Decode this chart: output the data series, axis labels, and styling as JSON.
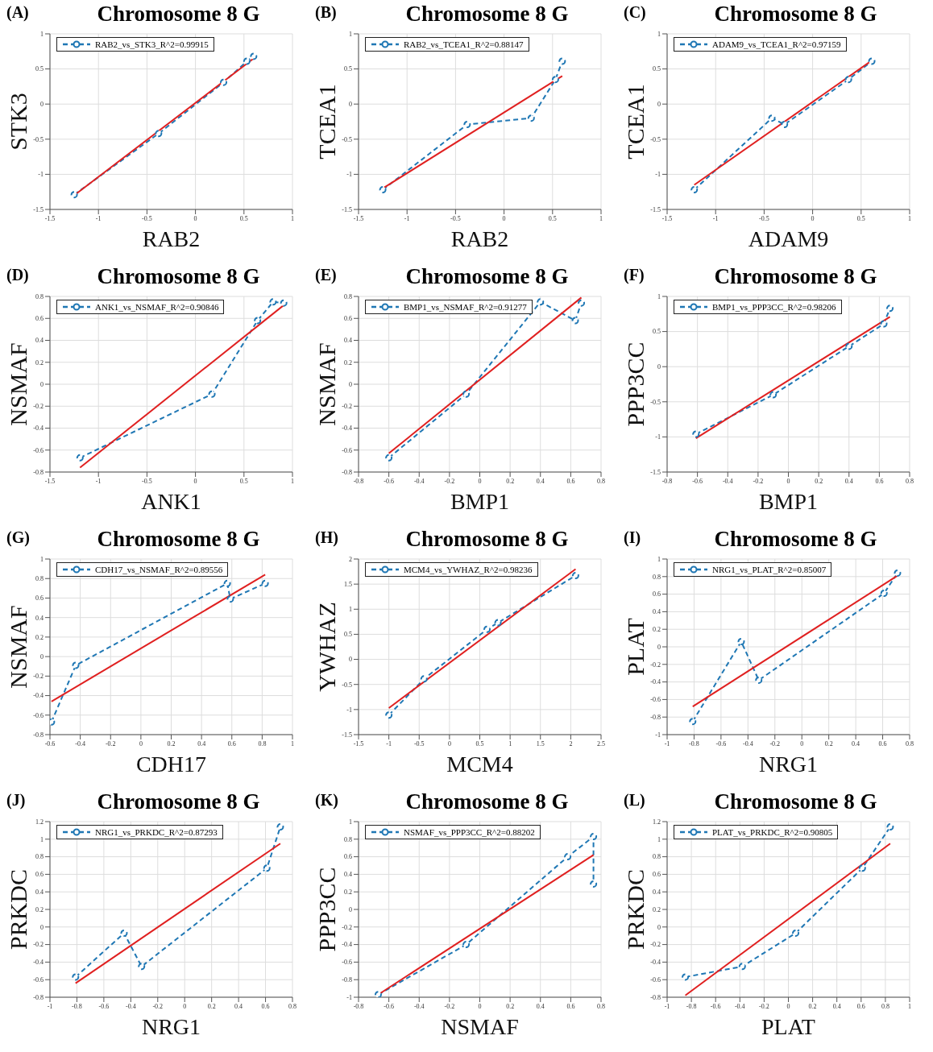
{
  "chart_data": [
    {
      "type": "line",
      "title": "Chromosome 8 G",
      "annotations": [
        "(A)"
      ],
      "xlabel": "RAB2",
      "ylabel": "STK3",
      "xlim": [
        -1.5,
        1
      ],
      "xticks": [
        -1.5,
        -1,
        -0.5,
        0,
        0.5,
        1
      ],
      "ylim": [
        -1.5,
        1
      ],
      "yticks": [
        -1.5,
        -1,
        -0.5,
        0,
        0.5,
        1
      ],
      "grid": true,
      "legend": "top left",
      "series": [
        {
          "name": "RAB2_vs_STK3_R^2=0.99915",
          "color": "#1f77b4",
          "marker": "circle",
          "line_style": "dashed",
          "x": [
            -1.25,
            -0.38,
            0.29,
            0.53,
            0.6
          ],
          "values": [
            -1.29,
            -0.42,
            0.31,
            0.61,
            0.68
          ]
        },
        {
          "color": "#e02020",
          "line_style": "solid",
          "x": [
            -1.25,
            0.6
          ],
          "values": [
            -1.3,
            0.65
          ]
        }
      ]
    },
    {
      "type": "line",
      "title": "Chromosome 8 G",
      "annotations": [
        "(B)"
      ],
      "xlabel": "RAB2",
      "ylabel": "TCEA1",
      "xlim": [
        -1.5,
        1
      ],
      "xticks": [
        -1.5,
        -1,
        -0.5,
        0,
        0.5,
        1
      ],
      "ylim": [
        -1.5,
        1
      ],
      "yticks": [
        -1.5,
        -1,
        -0.5,
        0,
        0.5,
        1
      ],
      "grid": true,
      "legend": "top left",
      "series": [
        {
          "name": "RAB2_vs_TCEA1_R^2=0.88147",
          "color": "#1f77b4",
          "marker": "circle",
          "line_style": "dashed",
          "x": [
            -1.25,
            -0.38,
            0.28,
            0.53,
            0.6
          ],
          "values": [
            -1.22,
            -0.29,
            -0.2,
            0.35,
            0.61
          ]
        },
        {
          "color": "#e02020",
          "line_style": "solid",
          "x": [
            -1.25,
            0.6
          ],
          "values": [
            -1.2,
            0.4
          ]
        }
      ]
    },
    {
      "type": "line",
      "title": "Chromosome 8 G",
      "annotations": [
        "(C)"
      ],
      "xlabel": "ADAM9",
      "ylabel": "TCEA1",
      "xlim": [
        -1.5,
        1
      ],
      "xticks": [
        -1.5,
        -1,
        -0.5,
        0,
        0.5,
        1
      ],
      "ylim": [
        -1.5,
        1
      ],
      "yticks": [
        -1.5,
        -1,
        -0.5,
        0,
        0.5,
        1
      ],
      "grid": true,
      "legend": "top left",
      "series": [
        {
          "name": "ADAM9_vs_TCEA1_R^2=0.97159",
          "color": "#1f77b4",
          "marker": "circle",
          "line_style": "dashed",
          "x": [
            -1.22,
            -0.42,
            -0.29,
            0.37,
            0.61
          ],
          "values": [
            -1.22,
            -0.2,
            -0.29,
            0.35,
            0.61
          ]
        },
        {
          "color": "#e02020",
          "line_style": "solid",
          "x": [
            -1.22,
            0.61
          ],
          "values": [
            -1.15,
            0.62
          ]
        }
      ]
    },
    {
      "type": "line",
      "title": "Chromosome 8 G",
      "annotations": [
        "(D)"
      ],
      "xlabel": "ANK1",
      "ylabel": "NSMAF",
      "xlim": [
        -1.5,
        1
      ],
      "xticks": [
        -1.5,
        -1,
        -0.5,
        0,
        0.5,
        1
      ],
      "ylim": [
        -0.8,
        0.8
      ],
      "yticks": [
        -0.8,
        -0.6,
        -0.4,
        -0.2,
        0,
        0.2,
        0.4,
        0.6,
        0.8
      ],
      "grid": true,
      "legend": "top left",
      "series": [
        {
          "name": "ANK1_vs_NSMAF_R^2=0.90846",
          "color": "#1f77b4",
          "marker": "circle",
          "line_style": "dashed",
          "x": [
            -1.19,
            0.17,
            0.64,
            0.8,
            0.91
          ],
          "values": [
            -0.67,
            -0.09,
            0.58,
            0.75,
            0.74
          ]
        },
        {
          "color": "#e02020",
          "line_style": "solid",
          "x": [
            -1.19,
            0.91
          ],
          "values": [
            -0.76,
            0.72
          ]
        }
      ]
    },
    {
      "type": "line",
      "title": "Chromosome 8 G",
      "annotations": [
        "(E)"
      ],
      "xlabel": "BMP1",
      "ylabel": "NSMAF",
      "xlim": [
        -0.8,
        0.8
      ],
      "xticks": [
        -0.8,
        -0.6,
        -0.4,
        -0.2,
        0,
        0.2,
        0.4,
        0.6,
        0.8
      ],
      "ylim": [
        -0.8,
        0.8
      ],
      "yticks": [
        -0.8,
        -0.6,
        -0.4,
        -0.2,
        0,
        0.2,
        0.4,
        0.6,
        0.8
      ],
      "grid": true,
      "legend": "top left",
      "series": [
        {
          "name": "BMP1_vs_NSMAF_R^2=0.91277",
          "color": "#1f77b4",
          "marker": "circle",
          "line_style": "dashed",
          "x": [
            -0.6,
            -0.09,
            0.4,
            0.63,
            0.67
          ],
          "values": [
            -0.67,
            -0.09,
            0.75,
            0.58,
            0.74
          ]
        },
        {
          "color": "#e02020",
          "line_style": "solid",
          "x": [
            -0.6,
            0.67
          ],
          "values": [
            -0.63,
            0.79
          ]
        }
      ]
    },
    {
      "type": "line",
      "title": "Chromosome 8 G",
      "annotations": [
        "(F)"
      ],
      "xlabel": "BMP1",
      "ylabel": "PPP3CC",
      "xlim": [
        -0.8,
        0.8
      ],
      "xticks": [
        -0.8,
        -0.6,
        -0.4,
        -0.2,
        0,
        0.2,
        0.4,
        0.6,
        0.8
      ],
      "ylim": [
        -1.5,
        1
      ],
      "yticks": [
        -1.5,
        -1,
        -0.5,
        0,
        0.5,
        1
      ],
      "grid": true,
      "legend": "top left",
      "series": [
        {
          "name": "BMP1_vs_PPP3CC_R^2=0.98206",
          "color": "#1f77b4",
          "marker": "circle",
          "line_style": "dashed",
          "x": [
            -0.61,
            -0.1,
            0.4,
            0.63,
            0.67
          ],
          "values": [
            -0.96,
            -0.4,
            0.29,
            0.61,
            0.83
          ]
        },
        {
          "color": "#e02020",
          "line_style": "solid",
          "x": [
            -0.61,
            0.67
          ],
          "values": [
            -1.02,
            0.71
          ]
        }
      ]
    },
    {
      "type": "line",
      "title": "Chromosome 8 G",
      "annotations": [
        "(G)"
      ],
      "xlabel": "CDH17",
      "ylabel": "NSMAF",
      "xlim": [
        -0.6,
        1
      ],
      "xticks": [
        -0.6,
        -0.4,
        -0.2,
        0,
        0.2,
        0.4,
        0.6,
        0.8,
        1
      ],
      "ylim": [
        -0.8,
        1
      ],
      "yticks": [
        -0.8,
        -0.6,
        -0.4,
        -0.2,
        0,
        0.2,
        0.4,
        0.6,
        0.8,
        1
      ],
      "grid": true,
      "legend": "top left",
      "series": [
        {
          "name": "CDH17_vs_NSMAF_R^2=0.89556",
          "color": "#1f77b4",
          "marker": "circle",
          "line_style": "dashed",
          "x": [
            -0.59,
            -0.43,
            0.57,
            0.59,
            0.82
          ],
          "values": [
            -0.67,
            -0.09,
            0.75,
            0.59,
            0.75
          ]
        },
        {
          "color": "#e02020",
          "line_style": "solid",
          "x": [
            -0.59,
            0.82
          ],
          "values": [
            -0.46,
            0.84
          ]
        }
      ]
    },
    {
      "type": "line",
      "title": "Chromosome 8 G",
      "annotations": [
        "(H)"
      ],
      "xlabel": "MCM4",
      "ylabel": "YWHAZ",
      "xlim": [
        -1.5,
        2.5
      ],
      "xticks": [
        -1.5,
        -1,
        -0.5,
        0,
        0.5,
        1,
        1.5,
        2,
        2.5
      ],
      "ylim": [
        -1.5,
        2
      ],
      "yticks": [
        -1.5,
        -1,
        -0.5,
        0,
        0.5,
        1,
        1.5,
        2
      ],
      "grid": true,
      "legend": "top left",
      "series": [
        {
          "name": "MCM4_vs_YWHAZ_R^2=0.98236",
          "color": "#1f77b4",
          "marker": "circle",
          "line_style": "dashed",
          "x": [
            -1,
            -0.42,
            0.62,
            0.8,
            2.08
          ],
          "values": [
            -1.11,
            -0.39,
            0.6,
            0.73,
            1.67
          ]
        },
        {
          "color": "#e02020",
          "line_style": "solid",
          "x": [
            -1,
            2.08
          ],
          "values": [
            -0.97,
            1.8
          ]
        }
      ]
    },
    {
      "type": "line",
      "title": "Chromosome 8 G",
      "annotations": [
        "(I)"
      ],
      "xlabel": "NRG1",
      "ylabel": "PLAT",
      "xlim": [
        -1,
        0.8
      ],
      "xticks": [
        -1,
        -0.8,
        -0.6,
        -0.4,
        -0.2,
        0,
        0.2,
        0.4,
        0.6,
        0.8
      ],
      "ylim": [
        -1,
        1
      ],
      "yticks": [
        -1,
        -0.8,
        -0.6,
        -0.4,
        -0.2,
        0,
        0.2,
        0.4,
        0.6,
        0.8,
        1
      ],
      "grid": true,
      "legend": "top left",
      "series": [
        {
          "name": "NRG1_vs_PLAT_R^2=0.85007",
          "color": "#1f77b4",
          "marker": "circle",
          "line_style": "dashed",
          "x": [
            -0.81,
            -0.45,
            -0.32,
            0.61,
            0.71
          ],
          "values": [
            -0.85,
            0.06,
            -0.38,
            0.61,
            0.84
          ]
        },
        {
          "color": "#e02020",
          "line_style": "solid",
          "x": [
            -0.81,
            0.71
          ],
          "values": [
            -0.68,
            0.81
          ]
        }
      ]
    },
    {
      "type": "line",
      "title": "Chromosome 8 G",
      "annotations": [
        "(J)"
      ],
      "xlabel": "NRG1",
      "ylabel": "PRKDC",
      "xlim": [
        -1,
        0.8
      ],
      "xticks": [
        -1,
        -0.8,
        -0.6,
        -0.4,
        -0.2,
        0,
        0.2,
        0.4,
        0.6,
        0.8
      ],
      "ylim": [
        -0.8,
        1.2
      ],
      "yticks": [
        -0.8,
        -0.6,
        -0.4,
        -0.2,
        0,
        0.2,
        0.4,
        0.6,
        0.8,
        1,
        1.2
      ],
      "grid": true,
      "legend": "top left",
      "series": [
        {
          "name": "NRG1_vs_PRKDC_R^2=0.87293",
          "color": "#1f77b4",
          "marker": "circle",
          "line_style": "dashed",
          "x": [
            -0.81,
            -0.45,
            -0.32,
            0.61,
            0.71
          ],
          "values": [
            -0.57,
            -0.07,
            -0.45,
            0.67,
            1.14
          ]
        },
        {
          "color": "#e02020",
          "line_style": "solid",
          "x": [
            -0.81,
            0.71
          ],
          "values": [
            -0.64,
            0.95
          ]
        }
      ]
    },
    {
      "type": "line",
      "title": "Chromosome 8 G",
      "annotations": [
        "(K)"
      ],
      "xlabel": "NSMAF",
      "ylabel": "PPP3CC",
      "xlim": [
        -0.8,
        0.8
      ],
      "xticks": [
        -0.8,
        -0.6,
        -0.4,
        -0.2,
        0,
        0.2,
        0.4,
        0.6,
        0.8
      ],
      "ylim": [
        -1,
        1
      ],
      "yticks": [
        -1,
        -0.8,
        -0.6,
        -0.4,
        -0.2,
        0,
        0.2,
        0.4,
        0.6,
        0.8,
        1
      ],
      "grid": true,
      "legend": "top left",
      "series": [
        {
          "name": "NSMAF_vs_PPP3CC_R^2=0.88202",
          "color": "#1f77b4",
          "marker": "circle",
          "line_style": "dashed",
          "x": [
            -0.67,
            -0.09,
            0.58,
            0.75,
            0.75
          ],
          "values": [
            -0.97,
            -0.4,
            0.6,
            0.83,
            0.29
          ]
        },
        {
          "color": "#e02020",
          "line_style": "solid",
          "x": [
            -0.67,
            0.75
          ],
          "values": [
            -0.97,
            0.62
          ]
        }
      ]
    },
    {
      "type": "line",
      "title": "Chromosome 8 G",
      "annotations": [
        "(L)"
      ],
      "xlabel": "PLAT",
      "ylabel": "PRKDC",
      "xlim": [
        -1,
        1
      ],
      "xticks": [
        -1,
        -0.8,
        -0.6,
        -0.4,
        -0.2,
        0,
        0.2,
        0.4,
        0.6,
        0.8,
        1
      ],
      "ylim": [
        -0.8,
        1.2
      ],
      "yticks": [
        -0.8,
        -0.6,
        -0.4,
        -0.2,
        0,
        0.2,
        0.4,
        0.6,
        0.8,
        1,
        1.2
      ],
      "grid": true,
      "legend": "top left",
      "series": [
        {
          "name": "PLAT_vs_PRKDC_R^2=0.90805",
          "color": "#1f77b4",
          "marker": "circle",
          "line_style": "dashed",
          "x": [
            -0.85,
            -0.38,
            0.06,
            0.61,
            0.84
          ],
          "values": [
            -0.57,
            -0.45,
            -0.07,
            0.67,
            1.14
          ]
        },
        {
          "color": "#e02020",
          "line_style": "solid",
          "x": [
            -0.85,
            0.84
          ],
          "values": [
            -0.78,
            0.95
          ]
        }
      ]
    }
  ]
}
